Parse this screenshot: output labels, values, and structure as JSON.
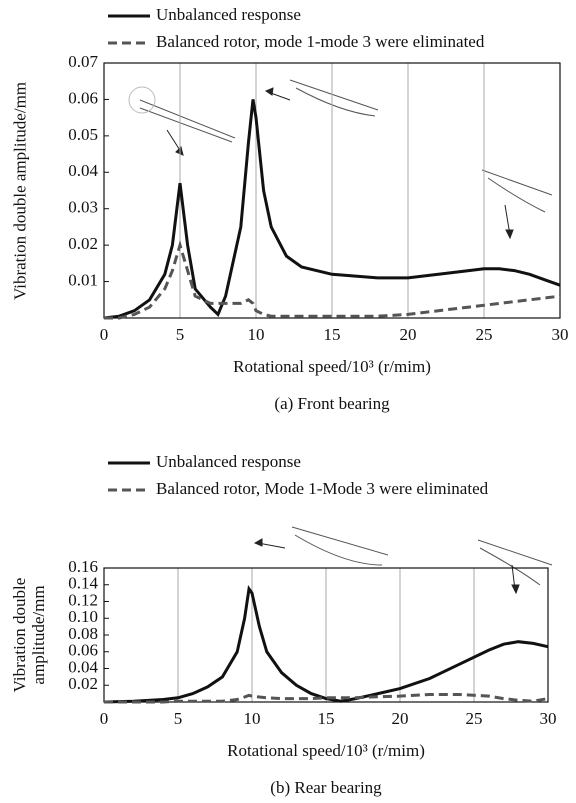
{
  "chart_data": [
    {
      "type": "line",
      "caption": "(a) Front bearing",
      "xlabel": "Rotational speed/10³ (r/mim)",
      "ylabel": "Vibration double amplitude/mm",
      "xlim": [
        0,
        30
      ],
      "xticks": [
        0,
        5,
        10,
        15,
        20,
        25,
        30
      ],
      "ylim": [
        0,
        0.07
      ],
      "yticks": [
        0.01,
        0.02,
        0.03,
        0.04,
        0.05,
        0.06,
        0.07
      ],
      "grid": "x",
      "x": [
        0,
        1,
        2,
        3,
        4,
        4.5,
        5,
        5.5,
        6,
        7,
        7.5,
        8,
        9,
        9.5,
        9.8,
        10,
        10.5,
        11,
        12,
        13,
        15,
        18,
        20,
        22,
        24,
        25,
        26,
        27,
        28,
        29,
        30
      ],
      "series": [
        {
          "name": "Unbalanced response",
          "color": "#111111",
          "dashed": false,
          "values": [
            0,
            0.0005,
            0.002,
            0.005,
            0.012,
            0.02,
            0.037,
            0.02,
            0.008,
            0.003,
            0.001,
            0.006,
            0.025,
            0.048,
            0.06,
            0.055,
            0.035,
            0.025,
            0.017,
            0.014,
            0.012,
            0.011,
            0.011,
            0.012,
            0.013,
            0.0135,
            0.0135,
            0.013,
            0.012,
            0.0105,
            0.009
          ]
        },
        {
          "name": "Balanced rotor, mode 1-mode 3 were eliminated",
          "color": "#555555",
          "dashed": true,
          "values": [
            0,
            0,
            0.001,
            0.003,
            0.008,
            0.013,
            0.02,
            0.013,
            0.006,
            0.004,
            0.004,
            0.004,
            0.004,
            0.005,
            0.004,
            0.002,
            0.001,
            0.0005,
            0.0005,
            0.0005,
            0.0005,
            0.0005,
            0.001,
            0.002,
            0.003,
            0.0035,
            0.004,
            0.0045,
            0.005,
            0.0055,
            0.006
          ]
        }
      ]
    },
    {
      "type": "line",
      "caption": "(b) Rear bearing",
      "xlabel": "Rotational speed/10³ (r/mim)",
      "ylabel": "Vibration double amplitude/mm",
      "xlim": [
        0,
        30
      ],
      "xticks": [
        0,
        5,
        10,
        15,
        20,
        25,
        30
      ],
      "ylim": [
        0,
        0.16
      ],
      "yticks": [
        0.02,
        0.04,
        0.06,
        0.08,
        {
          "value": 0.1,
          "label": "0.10"
        },
        0.12,
        0.14,
        0.16
      ],
      "grid": "x",
      "x": [
        0,
        2,
        4,
        5,
        6,
        7,
        8,
        9,
        9.5,
        9.8,
        10,
        10.5,
        11,
        12,
        13,
        14,
        15,
        16,
        17,
        18,
        20,
        22,
        24,
        26,
        27,
        28,
        29,
        30
      ],
      "series": [
        {
          "name": "Unbalanced response",
          "color": "#111111",
          "dashed": false,
          "values": [
            0,
            0.001,
            0.003,
            0.005,
            0.01,
            0.018,
            0.03,
            0.06,
            0.1,
            0.135,
            0.13,
            0.09,
            0.06,
            0.035,
            0.02,
            0.01,
            0.004,
            0.001,
            0.004,
            0.008,
            0.016,
            0.028,
            0.045,
            0.062,
            0.069,
            0.072,
            0.07,
            0.066
          ]
        },
        {
          "name": "Balanced rotor, Mode 1-Mode 3 were eliminated",
          "color": "#555555",
          "dashed": true,
          "values": [
            0,
            0,
            0,
            0.001,
            0.001,
            0.001,
            0.001,
            0.003,
            0.006,
            0.008,
            0.007,
            0.006,
            0.005,
            0.004,
            0.004,
            0.004,
            0.005,
            0.005,
            0.005,
            0.006,
            0.007,
            0.009,
            0.009,
            0.007,
            0.004,
            0.002,
            0.001,
            0.004
          ]
        }
      ]
    }
  ]
}
